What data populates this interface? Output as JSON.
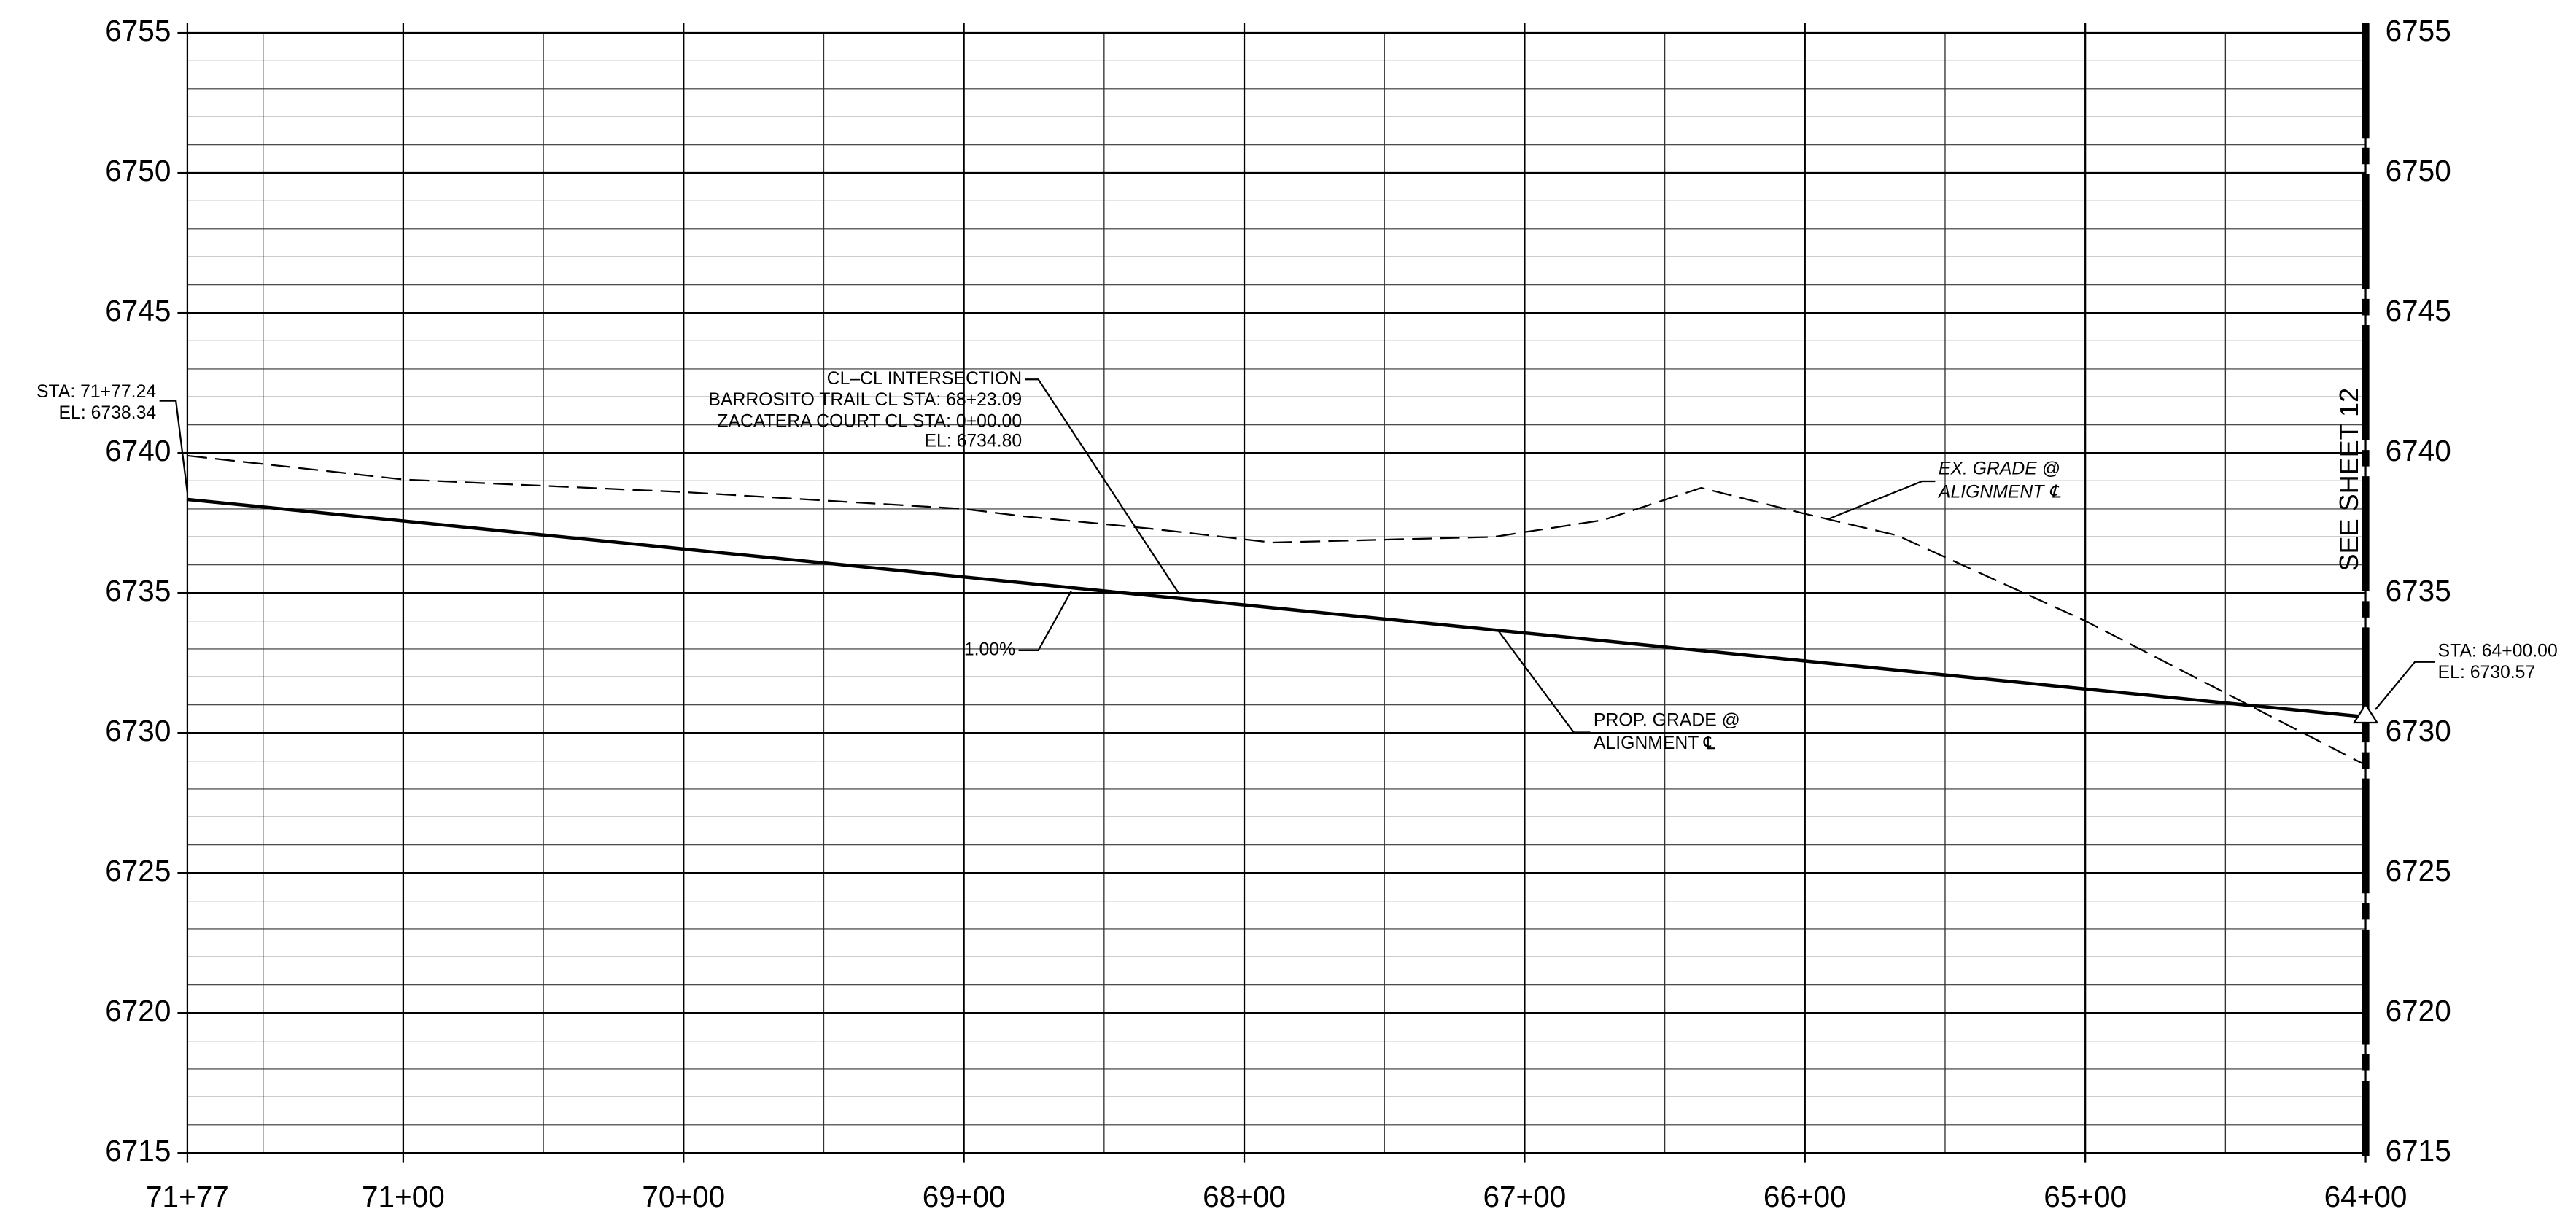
{
  "chart_data": {
    "type": "line",
    "xlim": [
      7177,
      6400
    ],
    "xticks": [
      {
        "value": 7177,
        "label": "71+77"
      },
      {
        "value": 7100,
        "label": "71+00"
      },
      {
        "value": 7000,
        "label": "70+00"
      },
      {
        "value": 6900,
        "label": "69+00"
      },
      {
        "value": 6800,
        "label": "68+00"
      },
      {
        "value": 6700,
        "label": "67+00"
      },
      {
        "value": 6600,
        "label": "66+00"
      },
      {
        "value": 6500,
        "label": "65+00"
      },
      {
        "value": 6400,
        "label": "64+00"
      }
    ],
    "ylim": [
      6715,
      6755
    ],
    "yticks": [
      6715,
      6720,
      6725,
      6730,
      6735,
      6740,
      6745,
      6750,
      6755
    ],
    "grid": true,
    "series": [
      {
        "style": "solid",
        "color": "#000000",
        "x": [
          7177.24,
          6823.09,
          6400
        ],
        "values": [
          6738.34,
          6734.8,
          6730.57
        ]
      },
      {
        "style": "dashed",
        "color": "#000000",
        "x": [
          7177,
          7100,
          7000,
          6900,
          6880,
          6834,
          6790,
          6711,
          6672,
          6637,
          6599,
          6567,
          6500,
          6400
        ],
        "values": [
          6739.9,
          6739.05,
          6738.6,
          6738.0,
          6737.75,
          6737.3,
          6736.8,
          6737.0,
          6737.6,
          6738.75,
          6737.8,
          6737.05,
          6734.0,
          6728.85
        ]
      }
    ],
    "annotations": [
      "STA: 71+77.24",
      "EL: 6738.34",
      "CL–CL INTERSECTION",
      "BARROSITO TRAIL CL STA: 68+23.09",
      "ZACATERA COURT CL STA: 0+00.00",
      "EL: 6734.80",
      "1.00%",
      "EX. GRADE @",
      "ALIGNMENT ℄",
      "PROP. GRADE @",
      "ALIGNMENT ℄",
      "STA: 64+00.00",
      "EL: 6730.57",
      "SEE SHEET 12"
    ]
  }
}
